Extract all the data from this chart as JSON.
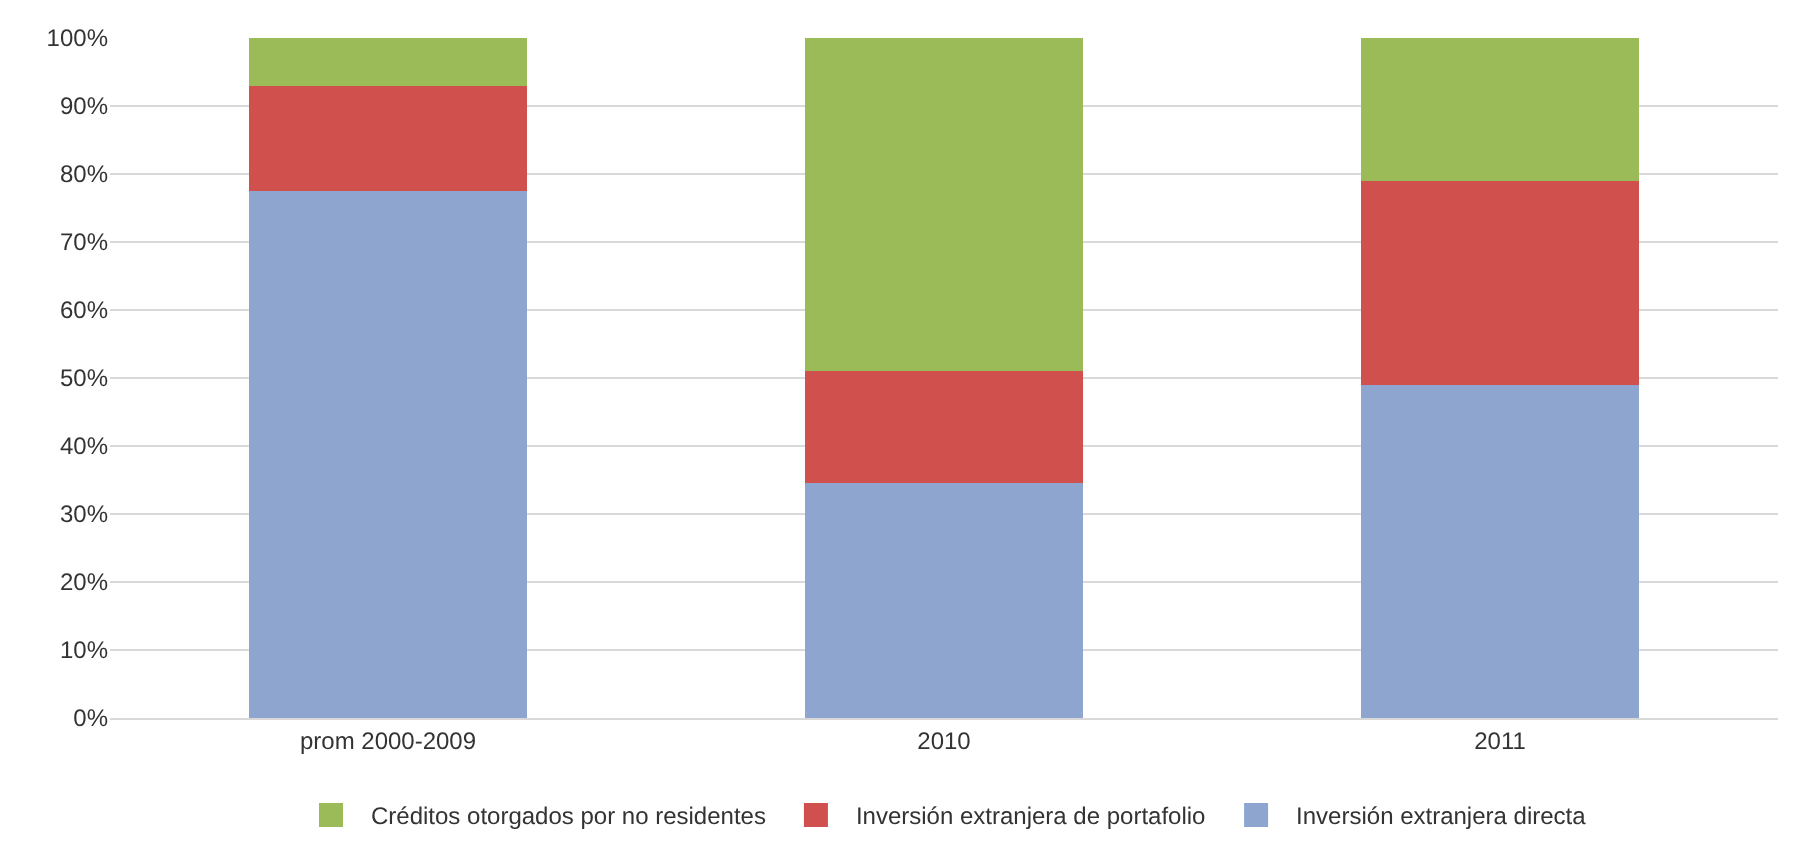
{
  "chart_data": {
    "type": "bar",
    "stacked": true,
    "categories": [
      "prom 2000-2009",
      "2010",
      "2011"
    ],
    "series": [
      {
        "name": "Inversión extranjera directa",
        "color": "#8ea6cf",
        "values": [
          77.5,
          34.5,
          49
        ]
      },
      {
        "name": "Inversión extranjera de portafolio",
        "color": "#d0504d",
        "values": [
          15.5,
          16.5,
          30
        ]
      },
      {
        "name": "Créditos otorgados por no residentes",
        "color": "#9bbb59",
        "values": [
          7,
          49,
          21
        ]
      }
    ],
    "ylim": [
      0,
      100
    ],
    "yticks": [
      {
        "value": 0,
        "label": "0%"
      },
      {
        "value": 10,
        "label": "10%"
      },
      {
        "value": 20,
        "label": "20%"
      },
      {
        "value": 30,
        "label": "30%"
      },
      {
        "value": 40,
        "label": "40%"
      },
      {
        "value": 50,
        "label": "50%"
      },
      {
        "value": 60,
        "label": "60%"
      },
      {
        "value": 70,
        "label": "70%"
      },
      {
        "value": 80,
        "label": "80%"
      },
      {
        "value": 90,
        "label": "90%"
      },
      {
        "value": 100,
        "label": "100%"
      }
    ],
    "grid": "y",
    "legend": "bottom"
  }
}
